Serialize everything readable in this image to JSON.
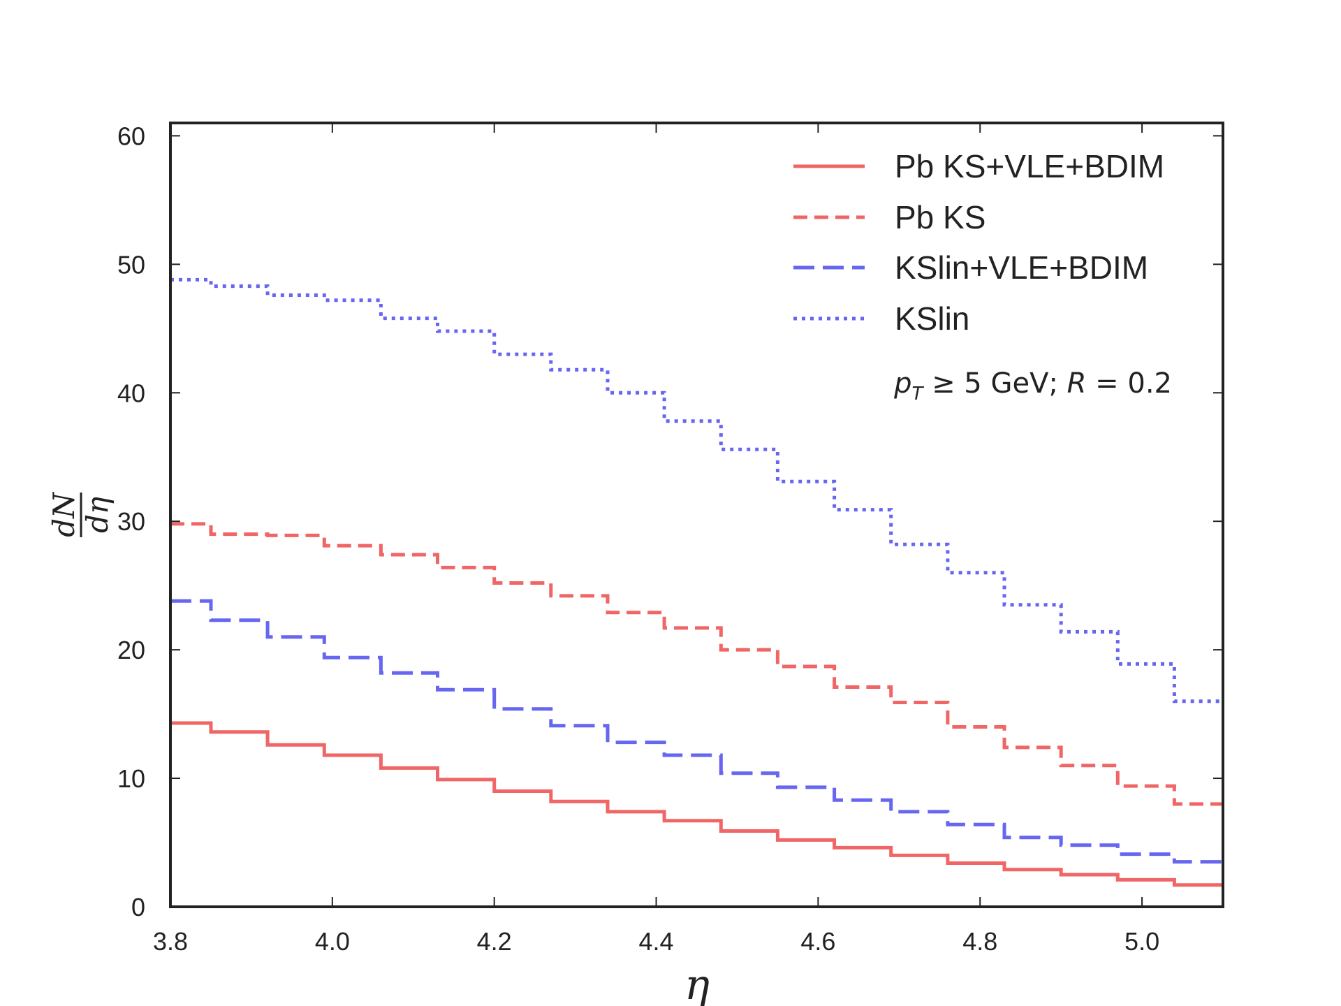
{
  "chart_data": {
    "type": "line",
    "drawstyle": "steps-post",
    "title": "",
    "xlabel": "η",
    "ylabel_num": "dN",
    "ylabel_den": "dη",
    "xlim": [
      3.8,
      5.1
    ],
    "ylim": [
      0,
      61
    ],
    "xticks": [
      3.8,
      4.0,
      4.2,
      4.4,
      4.6,
      4.8,
      5.0
    ],
    "xtick_labels": [
      "3.8",
      "4.0",
      "4.2",
      "4.4",
      "4.6",
      "4.8",
      "5.0"
    ],
    "yticks": [
      0,
      10,
      20,
      30,
      40,
      50,
      60
    ],
    "ytick_labels": [
      "0",
      "10",
      "20",
      "30",
      "40",
      "50",
      "60"
    ],
    "grid": false,
    "legend_position": "top-right",
    "bin_edges": [
      3.8,
      3.85,
      3.92,
      3.99,
      4.06,
      4.13,
      4.2,
      4.27,
      4.34,
      4.41,
      4.48,
      4.55,
      4.62,
      4.69,
      4.76,
      4.83,
      4.9,
      4.97,
      5.04,
      5.1
    ],
    "series": [
      {
        "name": "Pb KS+VLE+BDIM",
        "color": "#ee5555",
        "linestyle": "solid",
        "values": [
          14.3,
          13.6,
          12.6,
          11.8,
          10.8,
          9.9,
          9.0,
          8.2,
          7.4,
          6.7,
          5.9,
          5.2,
          4.6,
          4.0,
          3.4,
          2.9,
          2.5,
          2.1,
          1.7
        ]
      },
      {
        "name": "Pb KS",
        "color": "#ee5555",
        "linestyle": "dashed",
        "values": [
          29.8,
          29.0,
          28.9,
          28.1,
          27.4,
          26.4,
          25.2,
          24.2,
          22.9,
          21.7,
          20.0,
          18.7,
          17.1,
          15.9,
          14.0,
          12.4,
          11.0,
          9.4,
          8.0
        ]
      },
      {
        "name": "KSlin+VLE+BDIM",
        "color": "#5555ee",
        "linestyle": "longdash",
        "values": [
          23.8,
          22.3,
          21.0,
          19.4,
          18.2,
          16.9,
          15.4,
          14.1,
          12.8,
          11.8,
          10.4,
          9.3,
          8.3,
          7.4,
          6.4,
          5.4,
          4.8,
          4.1,
          3.5
        ]
      },
      {
        "name": "KSlin",
        "color": "#5555ee",
        "linestyle": "dotted",
        "values": [
          48.8,
          48.3,
          47.6,
          47.2,
          45.8,
          44.8,
          43.0,
          41.8,
          40.0,
          37.8,
          35.6,
          33.1,
          30.9,
          28.2,
          26.0,
          23.5,
          21.4,
          18.9,
          16.0
        ]
      }
    ],
    "annotation": {
      "p": "p",
      "sub": "T",
      "cond": " ≥ 5 GeV; ",
      "r": "R",
      "rval": " = 0.2"
    }
  }
}
